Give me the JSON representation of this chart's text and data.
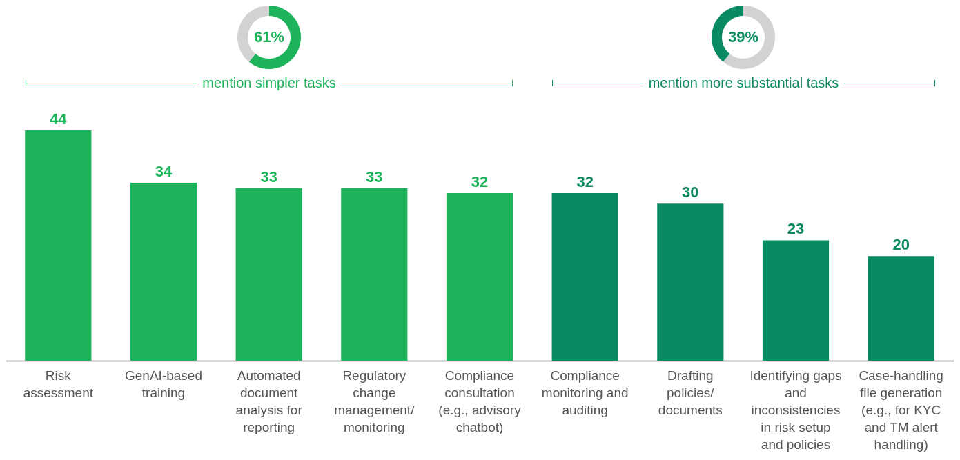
{
  "chart_data": [
    {
      "type": "donut",
      "categories": [
        null,
        null
      ],
      "values": [
        61,
        39
      ],
      "colors": [
        "#1db35a",
        "#d1d2d4"
      ],
      "value_labels": [
        "61%",
        null
      ],
      "annotations": [
        "mention simpler tasks"
      ]
    },
    {
      "type": "donut",
      "categories": [
        null,
        null
      ],
      "values": [
        61,
        39
      ],
      "colors": [
        "#d1d2d4",
        "#0a8a62"
      ],
      "value_labels": [
        null,
        "39%"
      ],
      "annotations": [
        "mention more substantial tasks"
      ]
    },
    {
      "type": "bar",
      "categories": [
        "Risk assessment",
        "GenAI-based training",
        "Automated document analysis for reporting",
        "Regulatory change management/ monitoring",
        "Compliance consultation (e.g., advisory chatbot)",
        "Compliance monitoring and auditing",
        "Drafting policies/ documents",
        "Identifying gaps and inconsistencies in risk setup and policies",
        "Case-handling file generation (e.g., for KYC and TM alert handling)"
      ],
      "values": [
        44,
        34,
        33,
        33,
        32,
        32,
        30,
        23,
        20
      ],
      "colors": [
        "#1db35a",
        "#1db35a",
        "#1db35a",
        "#1db35a",
        "#1db35a",
        "#0a8a62",
        "#0a8a62",
        "#0a8a62",
        "#0a8a62"
      ],
      "data_labels": true
    }
  ]
}
